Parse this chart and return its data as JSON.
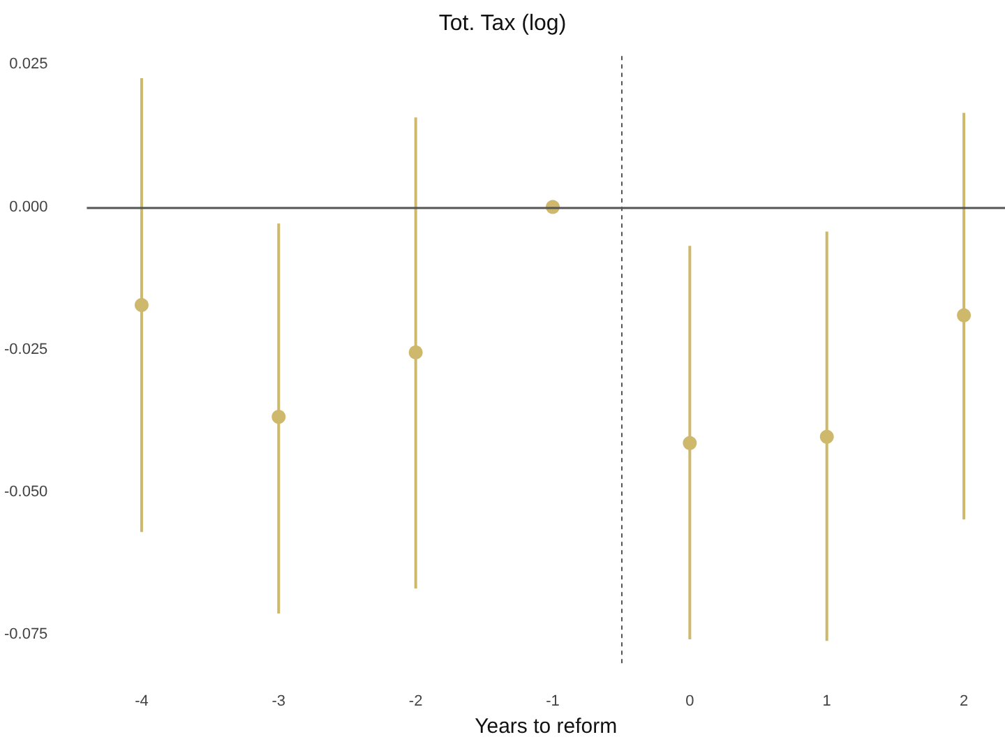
{
  "chart_data": {
    "type": "scatter",
    "title": "Tot. Tax (log)",
    "xlabel": "Years to reform",
    "x": [
      -4,
      -3,
      -2,
      -1,
      0,
      1,
      2
    ],
    "values": [
      -0.0172,
      -0.0368,
      -0.0255,
      0,
      -0.0414,
      -0.0403,
      -0.019
    ],
    "errors": [
      [
        -0.057,
        0.0226
      ],
      [
        -0.0713,
        -0.0029
      ],
      [
        -0.0669,
        0.0157
      ],
      null,
      [
        -0.0758,
        -0.0068
      ],
      [
        -0.0761,
        -0.0043
      ],
      [
        -0.0548,
        0.0165
      ]
    ],
    "color": "#cdb86c",
    "marker": "circle",
    "xlim": [
      -4.4,
      2.3
    ],
    "xticks": [
      -4,
      -3,
      -2,
      -1,
      0,
      1,
      2
    ],
    "ylim": [
      -0.08,
      0.027
    ],
    "yticks": [
      {
        "value": -0.075,
        "label": "-0.075"
      },
      {
        "value": -0.05,
        "label": "-0.050"
      },
      {
        "value": -0.025,
        "label": "-0.025"
      },
      {
        "value": 0,
        "label": "0.000"
      },
      {
        "value": 0.025,
        "label": "0.025"
      }
    ],
    "ref_lines": [
      {
        "axis": "y",
        "value": 0,
        "color": "#555555",
        "line_style": "solid"
      },
      {
        "axis": "x",
        "value": -0.5,
        "color": "#555555",
        "line_style": "dashed"
      }
    ],
    "grid": false
  }
}
